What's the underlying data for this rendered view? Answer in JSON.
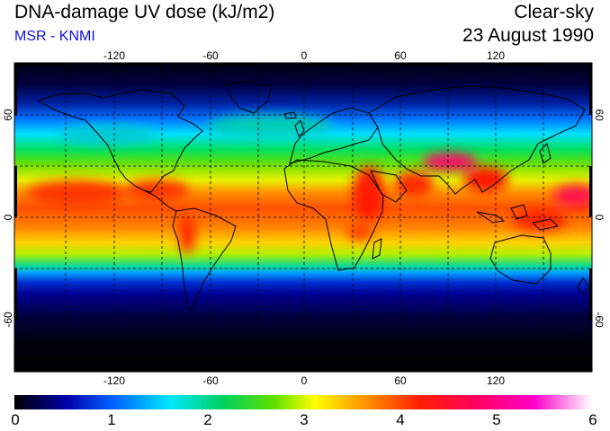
{
  "header": {
    "title": "DNA-damage UV dose (kJ/m2)",
    "source": "MSR - KNMI",
    "condition": "Clear-sky",
    "date": "23 August 1990"
  },
  "map": {
    "projection": "equirectangular",
    "lon_ticks": [
      "-120",
      "-60",
      "0",
      "60",
      "120"
    ],
    "lat_ticks_left": [
      "60",
      "0",
      "-60"
    ],
    "lat_ticks_right": [
      "60",
      "0",
      "-60"
    ],
    "gridlines": "dashed, every 30 degrees"
  },
  "colorbar": {
    "ticks": [
      "0",
      "1",
      "2",
      "3",
      "4",
      "5",
      "6"
    ],
    "colors": [
      "#000000",
      "#0000aa",
      "#0060ff",
      "#00e8ff",
      "#00d000",
      "#c8ff00",
      "#ffff00",
      "#ff9000",
      "#ff2000",
      "#ff0060",
      "#ff00c8",
      "#ffffff"
    ]
  }
}
